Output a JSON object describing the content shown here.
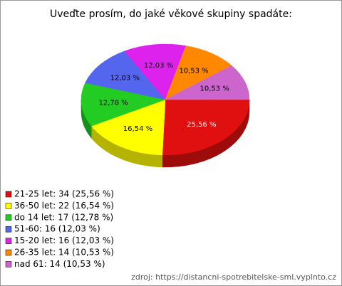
{
  "chart_data": {
    "type": "pie",
    "title": "Uveďte prosím, do jaké věkové skupiny spadáte:",
    "categories": [
      "21-25 let: 34 (25,56 %)",
      "36-50 let: 22 (16,54 %)",
      "do 14 let: 17 (12,78 %)",
      "51-60: 16 (12,03 %)",
      "15-20 let: 16 (12,03 %)",
      "26-35 let: 14 (10,53 %)",
      "nad 61: 14 (10,53 %)"
    ],
    "values": [
      25.56,
      16.54,
      12.78,
      12.03,
      12.03,
      10.53,
      10.53
    ],
    "value_labels": [
      "25,56 %",
      "16,54 %",
      "12,78 %",
      "12,03 %",
      "12,03 %",
      "10,53 %",
      "10,53 %"
    ],
    "colors": [
      "#e01010",
      "#ffff00",
      "#22cc22",
      "#5566ee",
      "#dd22ee",
      "#ff8800",
      "#cc66cc"
    ],
    "source": "zdroj: https://distancni-spotrebitelske-sml.vyplnto.cz"
  }
}
